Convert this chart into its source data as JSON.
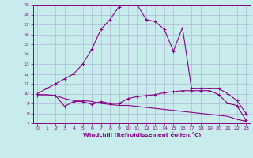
{
  "xlabel": "Windchill (Refroidissement éolien,°C)",
  "xlim": [
    -0.5,
    23.5
  ],
  "ylim": [
    7,
    19
  ],
  "yticks": [
    7,
    8,
    9,
    10,
    11,
    12,
    13,
    14,
    15,
    16,
    17,
    18,
    19
  ],
  "xticks": [
    0,
    1,
    2,
    3,
    4,
    5,
    6,
    7,
    8,
    9,
    10,
    11,
    12,
    13,
    14,
    15,
    16,
    17,
    18,
    19,
    20,
    21,
    22,
    23
  ],
  "bg_color": "#c8ecec",
  "grid_color": "#b0b8d8",
  "line_color": "#880088",
  "line1_x": [
    0,
    1,
    2,
    3,
    4,
    5,
    6,
    7,
    8,
    9,
    10,
    11,
    12,
    13,
    14,
    15,
    16,
    17,
    18,
    19,
    20,
    21,
    22,
    23
  ],
  "line1_y": [
    10.0,
    10.5,
    11.0,
    11.5,
    12.0,
    13.0,
    14.5,
    16.5,
    17.5,
    18.8,
    19.1,
    19.0,
    17.5,
    17.3,
    16.5,
    14.3,
    16.7,
    10.5,
    10.5,
    10.5,
    10.5,
    10.0,
    9.3,
    8.0
  ],
  "line2_x": [
    0,
    1,
    2,
    3,
    4,
    5,
    6,
    7,
    8,
    9,
    10,
    11,
    12,
    13,
    14,
    15,
    16,
    17,
    18,
    19,
    20,
    21,
    22,
    23
  ],
  "line2_y": [
    9.8,
    9.8,
    9.8,
    8.7,
    9.2,
    9.2,
    8.9,
    9.2,
    9.0,
    9.0,
    9.5,
    9.7,
    9.8,
    9.9,
    10.1,
    10.2,
    10.3,
    10.3,
    10.3,
    10.3,
    9.9,
    9.0,
    8.8,
    7.3
  ],
  "line3_x": [
    0,
    1,
    2,
    3,
    4,
    5,
    6,
    7,
    8,
    9,
    10,
    11,
    12,
    13,
    14,
    15,
    16,
    17,
    18,
    19,
    20,
    21,
    22,
    23
  ],
  "line3_y": [
    9.9,
    9.9,
    9.8,
    9.5,
    9.3,
    9.3,
    9.2,
    9.0,
    8.9,
    8.8,
    8.8,
    8.7,
    8.6,
    8.5,
    8.4,
    8.3,
    8.2,
    8.1,
    8.0,
    7.9,
    7.8,
    7.7,
    7.4,
    7.2
  ]
}
